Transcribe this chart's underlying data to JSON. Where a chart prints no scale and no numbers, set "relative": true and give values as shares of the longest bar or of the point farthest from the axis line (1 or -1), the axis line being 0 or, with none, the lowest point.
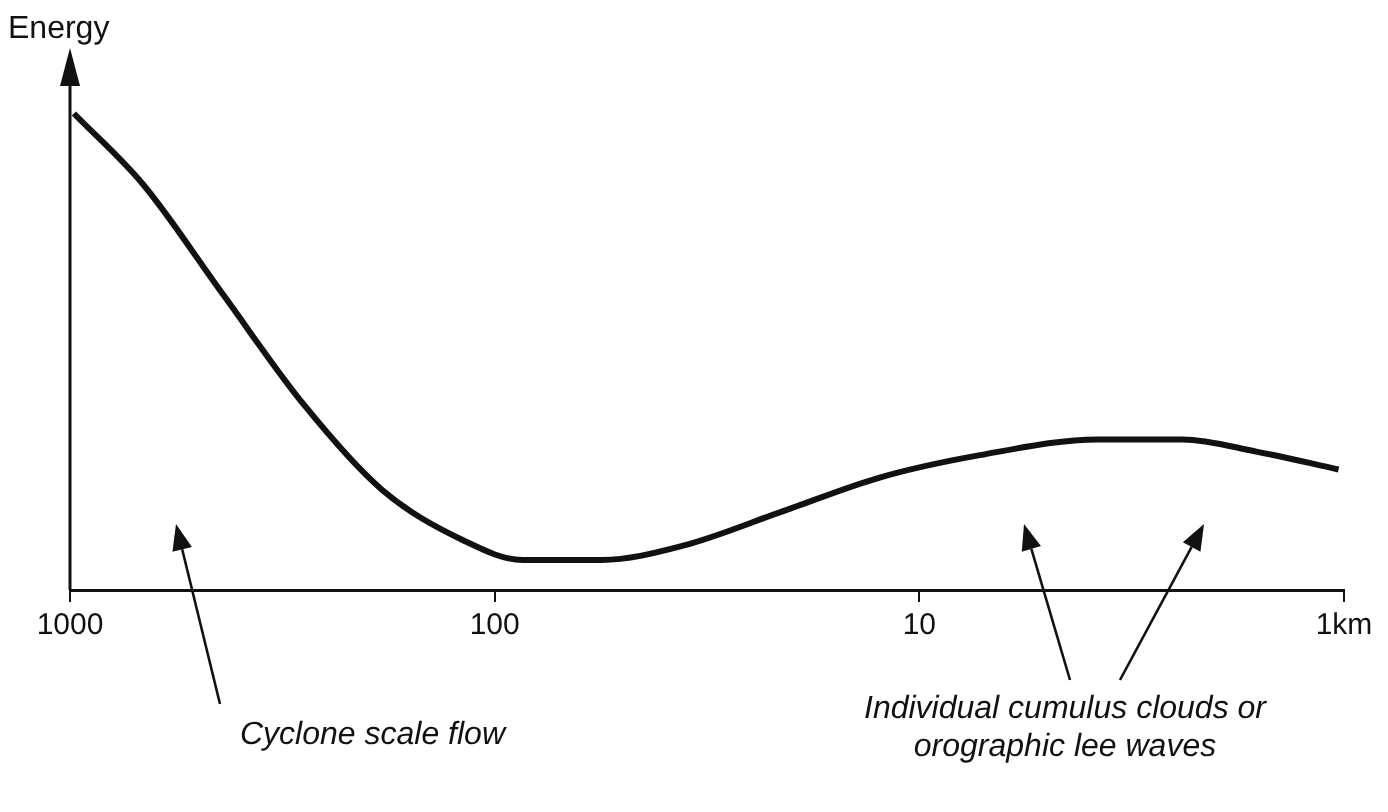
{
  "chart_data": {
    "type": "line",
    "ylabel": "Energy",
    "relative": true,
    "log": "x",
    "xlim": [
      1000,
      1
    ],
    "xticks": [
      1000,
      100,
      10,
      {
        "value": 1,
        "label": "1km"
      }
    ],
    "grid": false,
    "legend": false,
    "marker": "none",
    "line_style": "solid",
    "x": [
      979,
      671,
      436,
      282,
      184,
      119,
      86,
      56,
      36,
      21,
      12.4,
      7.2,
      3.8,
      2.4,
      1.6,
      1.03
    ],
    "series": [
      {
        "color": "#111111",
        "values": [
          1.0,
          0.85,
          0.62,
          0.39,
          0.21,
          0.105,
          0.063,
          0.063,
          0.093,
          0.165,
          0.236,
          0.283,
          0.316,
          0.316,
          0.29,
          0.253
        ]
      }
    ],
    "annotations": [
      "Cyclone scale flow",
      "Individual cumulus clouds or orographic lee waves"
    ]
  }
}
